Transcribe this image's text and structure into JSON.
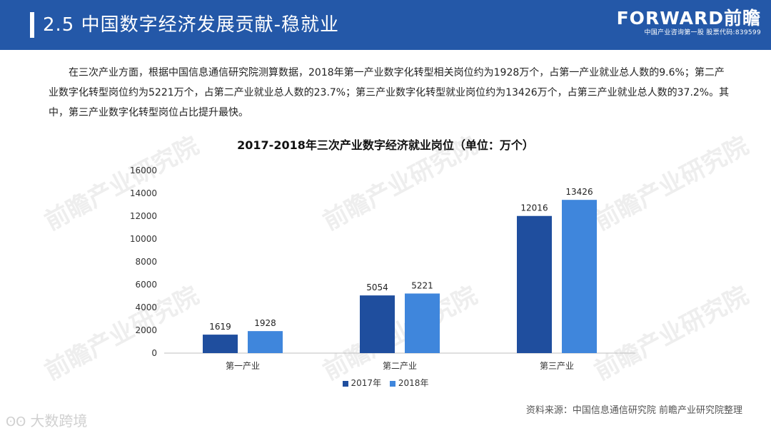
{
  "header": {
    "title": "2.5 中国数字经济发展贡献-稳就业",
    "logo_main": "FORWARD前瞻",
    "logo_sub": "中国产业咨询第一股 股票代码:839599"
  },
  "paragraph": "在三次产业方面，根据中国信息通信研究院测算数据，2018年第一产业数字化转型相关岗位约为1928万个，占第一产业就业总人数的9.6%；第二产业数字化转型岗位约为5221万个，占第二产业就业总人数的23.7%；第三产业数字化转型就业岗位约为13426万个，占第三产业就业总人数的37.2%。其中，第三产业数字化转型岗位占比提升最快。",
  "watermark": "前瞻产业研究院",
  "chart_data": {
    "type": "bar",
    "title": "2017-2018年三次产业数字经济就业岗位（单位：万个）",
    "categories": [
      "第一产业",
      "第二产业",
      "第三产业"
    ],
    "series": [
      {
        "name": "2017年",
        "values": [
          1619,
          5054,
          12016
        ],
        "color": "#1f4e9e"
      },
      {
        "name": "2018年",
        "values": [
          1928,
          5221,
          13426
        ],
        "color": "#3f86dc"
      }
    ],
    "ylim": [
      0,
      16000
    ],
    "yticks": [
      0,
      2000,
      4000,
      6000,
      8000,
      10000,
      12000,
      14000,
      16000
    ],
    "grid": false,
    "legend": "bottom"
  },
  "source": "资料来源：中国信息通信研究院 前瞻产业研究院整理",
  "brand": "大数跨境",
  "brand_icon": "ʘʘ"
}
